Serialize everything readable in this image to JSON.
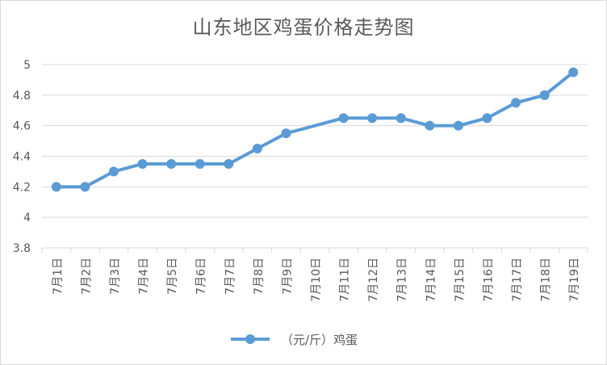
{
  "chart_data": {
    "type": "line",
    "title": "山东地区鸡蛋价格走势图",
    "xlabel": "",
    "ylabel": "",
    "categories": [
      "7月1日",
      "7月2日",
      "7月3日",
      "7月4日",
      "7月5日",
      "7月6日",
      "7月7日",
      "7月8日",
      "7月9日",
      "7月10日",
      "7月11日",
      "7月12日",
      "7月13日",
      "7月14日",
      "7月15日",
      "7月16日",
      "7月17日",
      "7月18日",
      "7月19日"
    ],
    "series": [
      {
        "name": "（元/斤）鸡蛋",
        "values": [
          4.2,
          4.2,
          4.3,
          4.35,
          4.35,
          4.35,
          4.35,
          4.45,
          4.55,
          null,
          4.65,
          4.65,
          4.65,
          4.6,
          4.6,
          4.65,
          4.75,
          4.8,
          4.95
        ],
        "color": "#5b9bd5"
      }
    ],
    "ylim": [
      3.8,
      5
    ],
    "yticks": [
      "3.8",
      "4",
      "4.2",
      "4.4",
      "4.6",
      "4.8",
      "5"
    ],
    "grid": true,
    "legend_position": "bottom"
  }
}
